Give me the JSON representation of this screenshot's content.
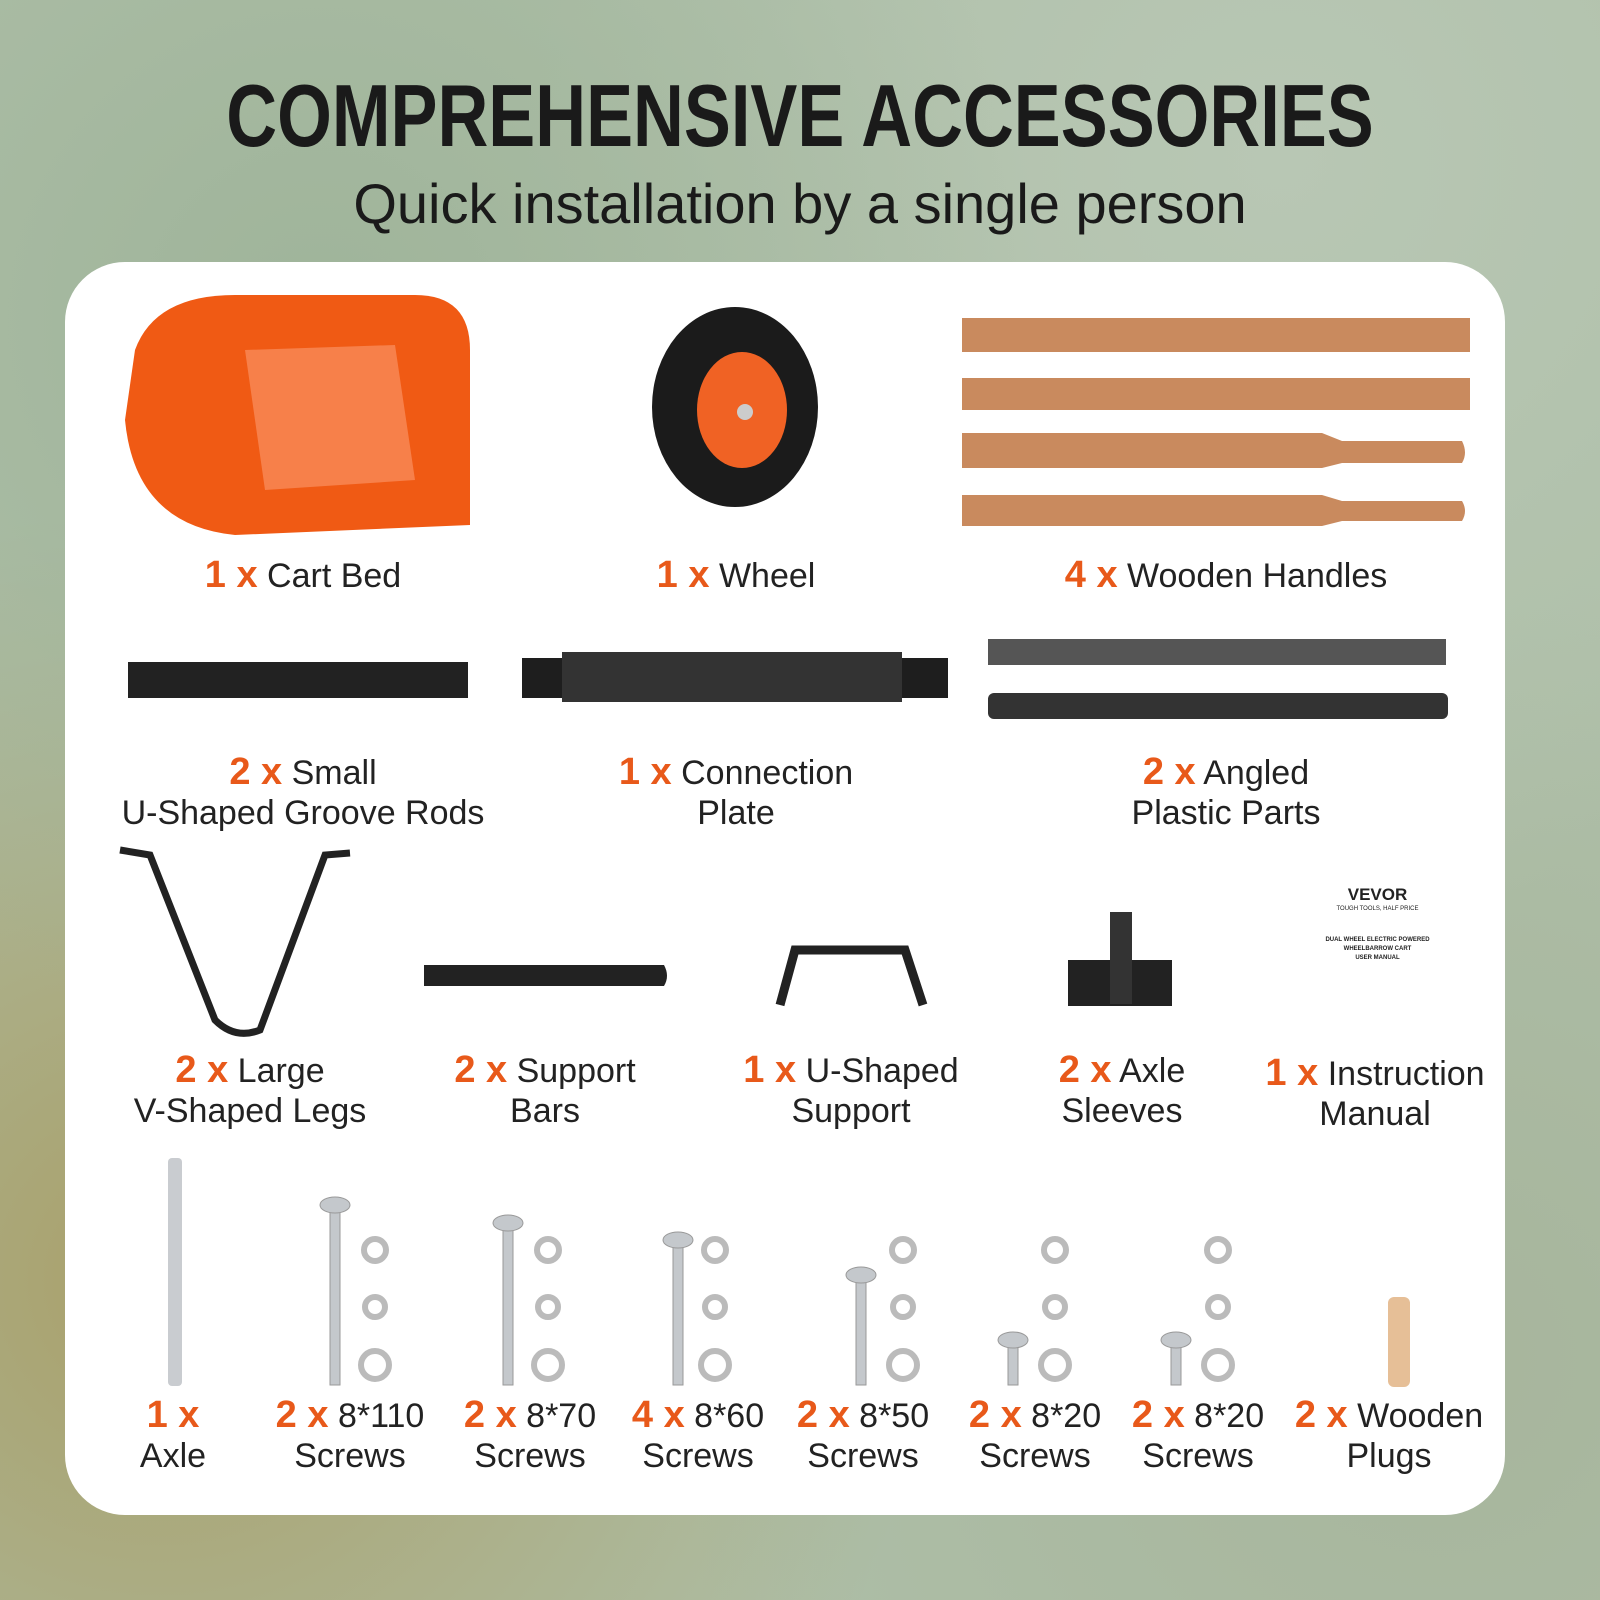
{
  "header": {
    "title": "COMPREHENSIVE ACCESSORIES",
    "subtitle": "Quick installation by a single person"
  },
  "items": [
    {
      "qty": "1 x",
      "line1": "Cart Bed",
      "line2": ""
    },
    {
      "qty": "1 x",
      "line1": "Wheel",
      "line2": ""
    },
    {
      "qty": "4 x",
      "line1": "Wooden Handles",
      "line2": ""
    },
    {
      "qty": "2 x",
      "line1": "Small",
      "line2": "U-Shaped Groove Rods"
    },
    {
      "qty": "1 x",
      "line1": "Connection",
      "line2": "Plate"
    },
    {
      "qty": "2 x",
      "line1": "Angled",
      "line2": "Plastic Parts"
    },
    {
      "qty": "2 x",
      "line1": "Large",
      "line2": "V-Shaped Legs"
    },
    {
      "qty": "2 x",
      "line1": "Support",
      "line2": "Bars"
    },
    {
      "qty": "1 x",
      "line1": "U-Shaped",
      "line2": "Support"
    },
    {
      "qty": "2 x",
      "line1": "Axle",
      "line2": "Sleeves"
    },
    {
      "qty": "1 x",
      "line1": "Instruction",
      "line2": "Manual"
    },
    {
      "qty": "1 x",
      "line1": "",
      "line2": "Axle"
    },
    {
      "qty": "2 x",
      "line1": "8*110",
      "line2": "Screws"
    },
    {
      "qty": "2 x",
      "line1": "8*70",
      "line2": "Screws"
    },
    {
      "qty": "4 x",
      "line1": "8*60",
      "line2": "Screws"
    },
    {
      "qty": "2 x",
      "line1": "8*50",
      "line2": "Screws"
    },
    {
      "qty": "2 x",
      "line1": "8*20",
      "line2": "Screws"
    },
    {
      "qty": "2 x",
      "line1": "8*20",
      "line2": "Screws"
    },
    {
      "qty": "2 x",
      "line1": "Wooden",
      "line2": "Plugs"
    }
  ],
  "manual": {
    "brand": "VEVOR",
    "tagline": "TOUGH TOOLS, HALF PRICE",
    "title1": "DUAL WHEEL ELECTRIC POWERED",
    "title2": "WHEELBARROW CART",
    "title3": "USER MANUAL"
  },
  "colors": {
    "accent": "#e8591a",
    "wood": "#c98a5e",
    "metal": "#2a2a2a"
  }
}
